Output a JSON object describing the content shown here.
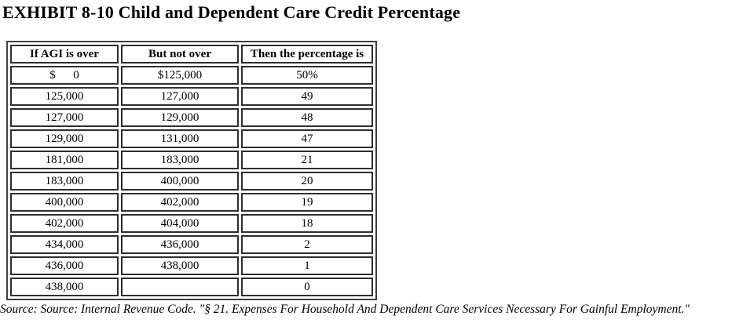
{
  "title": "EXHIBIT 8-10 Child and Dependent Care Credit Percentage",
  "table": {
    "headers": [
      "If AGI is over",
      "But not over",
      "Then the percentage is"
    ],
    "rows": [
      [
        "$      0",
        "$125,000",
        "50%"
      ],
      [
        "125,000",
        "127,000",
        "49"
      ],
      [
        "127,000",
        "129,000",
        "48"
      ],
      [
        "129,000",
        "131,000",
        "47"
      ],
      [
        "181,000",
        "183,000",
        "21"
      ],
      [
        "183,000",
        "400,000",
        "20"
      ],
      [
        "400,000",
        "402,000",
        "19"
      ],
      [
        "402,000",
        "404,000",
        "18"
      ],
      [
        "434,000",
        "436,000",
        "2"
      ],
      [
        "436,000",
        "438,000",
        "1"
      ],
      [
        "438,000",
        "",
        "0"
      ]
    ]
  },
  "source_note": "Source: Source: Internal Revenue Code. \"§ 21. Expenses For Household And Dependent Care Services Necessary For Gainful Employment.\"",
  "colors": {
    "background": "#ffffff",
    "text": "#000000",
    "table_outer_border": "#3f3f3f",
    "cell_border": "#2e2e2e"
  }
}
